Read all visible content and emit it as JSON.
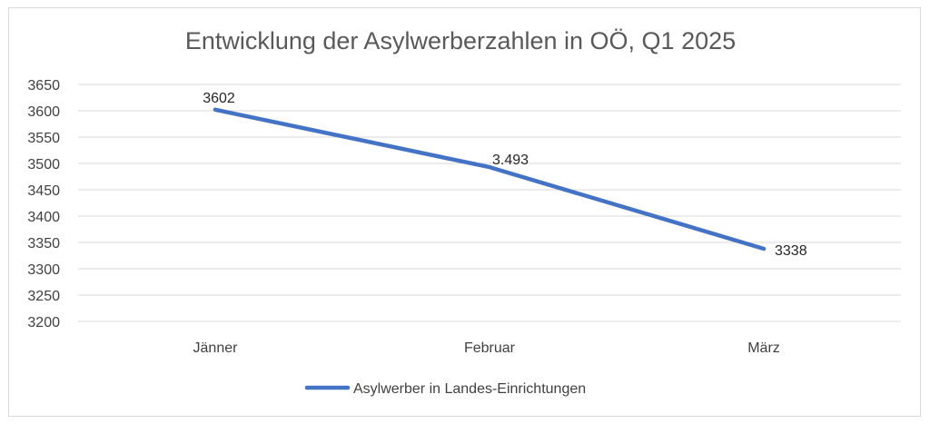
{
  "chart_data": {
    "type": "line",
    "title": "Entwicklung der Asylwerberzahlen in OÖ, Q1 2025",
    "categories": [
      "Jänner",
      "Februar",
      "März"
    ],
    "series": [
      {
        "name": "Asylwerber in Landes-Einrichtungen",
        "values": [
          3602,
          3493,
          3338
        ],
        "data_labels": [
          "3602",
          "3.493",
          "3338"
        ],
        "color": "#4472c4"
      }
    ],
    "ylim": [
      3200,
      3650
    ],
    "y_ticks": [
      "3200",
      "3250",
      "3300",
      "3350",
      "3400",
      "3450",
      "3500",
      "3550",
      "3600",
      "3650"
    ],
    "grid": true,
    "legend_position": "bottom"
  },
  "colors": {
    "line": "#4472c4",
    "grid": "#d9d9d9",
    "frame": "#d9d9d9"
  }
}
